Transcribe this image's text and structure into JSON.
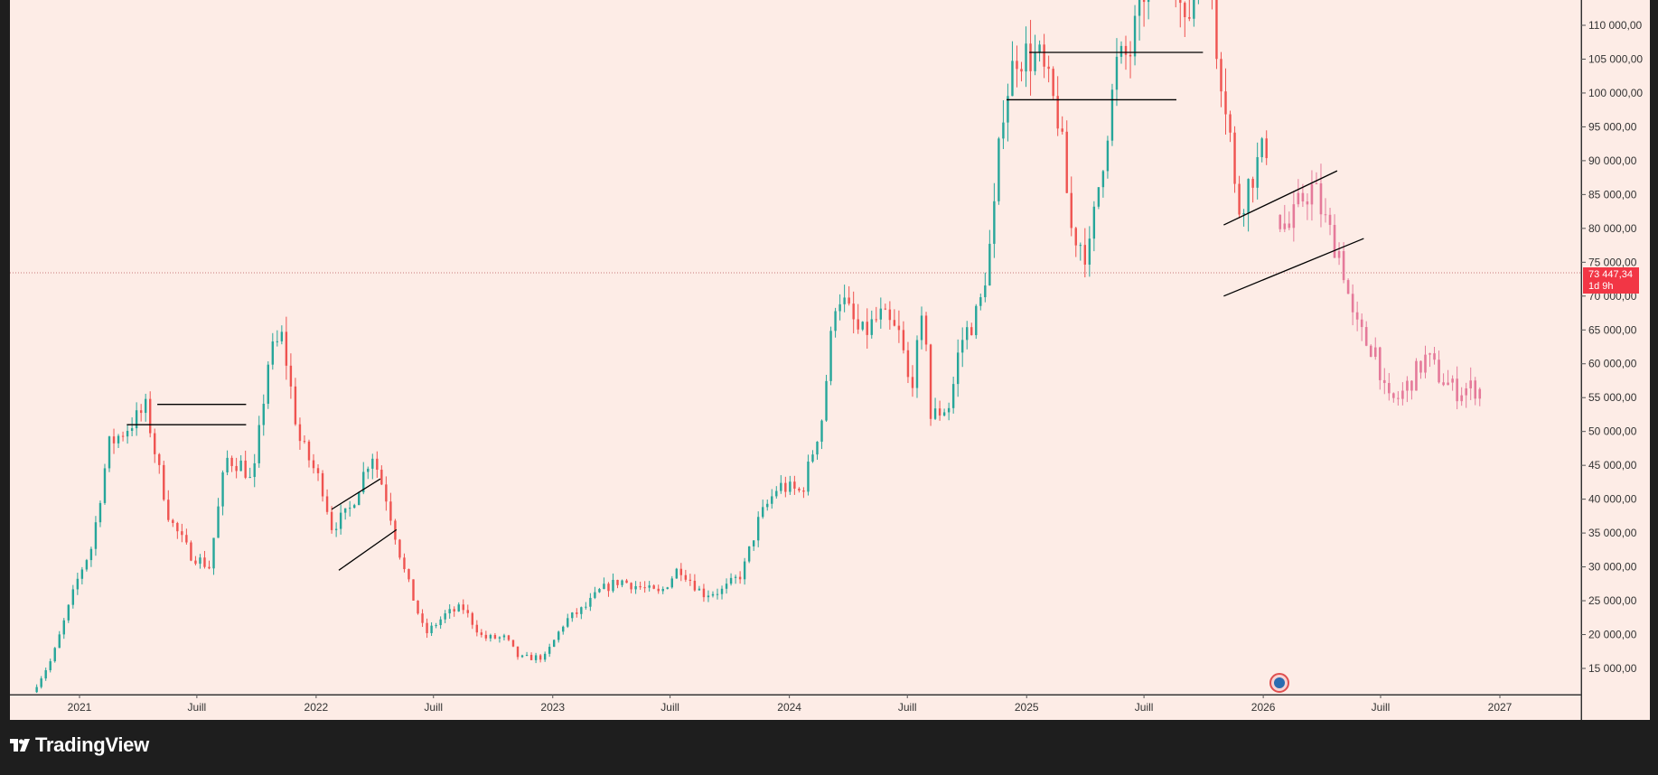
{
  "chart_data": {
    "type": "candlestick",
    "brand_colors": {
      "up": "#26a69a",
      "down": "#ef5350",
      "projection": "#e57a9a",
      "background": "#fdece6",
      "frame": "#1e1e1e"
    },
    "x_range": [
      "2020-10",
      "2027-04"
    ],
    "y_range": [
      10000,
      112000
    ],
    "x_ticks": [
      {
        "date": "2021-01",
        "label": "2021"
      },
      {
        "date": "2021-07",
        "label": "Juill"
      },
      {
        "date": "2022-01",
        "label": "2022"
      },
      {
        "date": "2022-07",
        "label": "Juill"
      },
      {
        "date": "2023-01",
        "label": "2023"
      },
      {
        "date": "2023-07",
        "label": "Juill"
      },
      {
        "date": "2024-01",
        "label": "2024"
      },
      {
        "date": "2024-07",
        "label": "Juill"
      },
      {
        "date": "2025-01",
        "label": "2025"
      },
      {
        "date": "2025-07",
        "label": "Juill"
      },
      {
        "date": "2026-01",
        "label": "2026"
      },
      {
        "date": "2026-07",
        "label": "Juill"
      },
      {
        "date": "2027-01",
        "label": "2027"
      }
    ],
    "y_ticks": [
      {
        "value": 15000,
        "label": "15 000,00"
      },
      {
        "value": 20000,
        "label": "20 000,00"
      },
      {
        "value": 25000,
        "label": "25 000,00"
      },
      {
        "value": 30000,
        "label": "30 000,00"
      },
      {
        "value": 35000,
        "label": "35 000,00"
      },
      {
        "value": 40000,
        "label": "40 000,00"
      },
      {
        "value": 45000,
        "label": "45 000,00"
      },
      {
        "value": 50000,
        "label": "50 000,00"
      },
      {
        "value": 55000,
        "label": "55 000,00"
      },
      {
        "value": 60000,
        "label": "60 000,00"
      },
      {
        "value": 65000,
        "label": "65 000,00"
      },
      {
        "value": 70000,
        "label": "70 000,00"
      },
      {
        "value": 75000,
        "label": "75 000,00"
      },
      {
        "value": 80000,
        "label": "80 000,00"
      },
      {
        "value": 85000,
        "label": "85 000,00"
      },
      {
        "value": 90000,
        "label": "90 000,00"
      },
      {
        "value": 95000,
        "label": "95 000,00"
      },
      {
        "value": 100000,
        "label": "100 000,00"
      },
      {
        "value": 105000,
        "label": "105 000,00"
      },
      {
        "value": 110000,
        "label": "110 000,00"
      }
    ],
    "current_price": {
      "value": 73447.34,
      "label": "73 447,34",
      "countdown": "1d 9h"
    },
    "price_path": [
      [
        "2020-10-20",
        11500
      ],
      [
        "2020-11-20",
        16500
      ],
      [
        "2021-01-01",
        29000
      ],
      [
        "2021-01-20",
        33000
      ],
      [
        "2021-02-15",
        48000
      ],
      [
        "2021-03-10",
        50000
      ],
      [
        "2021-04-14",
        53500
      ],
      [
        "2021-04-25",
        48000
      ],
      [
        "2021-05-20",
        37000
      ],
      [
        "2021-06-20",
        32000
      ],
      [
        "2021-07-20",
        30000
      ],
      [
        "2021-08-15",
        46000
      ],
      [
        "2021-09-10",
        45000
      ],
      [
        "2021-09-25",
        42000
      ],
      [
        "2021-10-20",
        61000
      ],
      [
        "2021-11-10",
        64000
      ],
      [
        "2021-12-05",
        49000
      ],
      [
        "2022-01-10",
        42000
      ],
      [
        "2022-01-25",
        36000
      ],
      [
        "2022-02-20",
        38000
      ],
      [
        "2022-03-28",
        47000
      ],
      [
        "2022-04-20",
        40000
      ],
      [
        "2022-05-15",
        30000
      ],
      [
        "2022-06-18",
        20000
      ],
      [
        "2022-07-20",
        23000
      ],
      [
        "2022-08-15",
        24000
      ],
      [
        "2022-09-15",
        19500
      ],
      [
        "2022-10-20",
        19500
      ],
      [
        "2022-11-10",
        16500
      ],
      [
        "2022-12-20",
        16700
      ],
      [
        "2023-01-20",
        22000
      ],
      [
        "2023-02-20",
        24000
      ],
      [
        "2023-03-15",
        26500
      ],
      [
        "2023-04-15",
        28000
      ],
      [
        "2023-05-15",
        27000
      ],
      [
        "2023-06-15",
        26000
      ],
      [
        "2023-07-15",
        30000
      ],
      [
        "2023-08-20",
        26000
      ],
      [
        "2023-09-20",
        26500
      ],
      [
        "2023-10-20",
        29000
      ],
      [
        "2023-11-15",
        37000
      ],
      [
        "2023-12-15",
        42000
      ],
      [
        "2024-01-20",
        41000
      ],
      [
        "2024-02-20",
        52000
      ],
      [
        "2024-03-14",
        71000
      ],
      [
        "2024-04-20",
        64000
      ],
      [
        "2024-05-20",
        67000
      ],
      [
        "2024-06-20",
        64000
      ],
      [
        "2024-07-05",
        56000
      ],
      [
        "2024-07-28",
        68000
      ],
      [
        "2024-08-05",
        52000
      ],
      [
        "2024-09-05",
        54000
      ],
      [
        "2024-09-20",
        63000
      ],
      [
        "2024-10-20",
        68000
      ],
      [
        "2024-11-10",
        80000
      ],
      [
        "2024-11-25",
        98000
      ],
      [
        "2024-12-17",
        106000
      ],
      [
        "2025-01-20",
        105000
      ],
      [
        "2025-02-20",
        96000
      ],
      [
        "2025-03-10",
        80000
      ],
      [
        "2025-04-07",
        76000
      ],
      [
        "2025-04-20",
        85000
      ],
      [
        "2025-05-20",
        104000
      ],
      [
        "2025-06-10",
        106000
      ],
      [
        "2025-07-14",
        121000
      ],
      [
        "2025-08-14",
        123000
      ],
      [
        "2025-09-01",
        108000
      ],
      [
        "2025-10-06",
        125000
      ],
      [
        "2025-10-20",
        108000
      ],
      [
        "2025-11-10",
        95000
      ],
      [
        "2025-11-21",
        82000
      ],
      [
        "2025-12-15",
        88000
      ],
      [
        "2026-01-10",
        93000
      ]
    ],
    "projection_path": [
      [
        "2026-01-20",
        82000
      ],
      [
        "2026-02-10",
        80000
      ],
      [
        "2026-03-05",
        85000
      ],
      [
        "2026-03-20",
        86000
      ],
      [
        "2026-04-10",
        80000
      ],
      [
        "2026-05-01",
        76000
      ],
      [
        "2026-05-20",
        66000
      ],
      [
        "2026-06-10",
        63000
      ],
      [
        "2026-06-25",
        62000
      ],
      [
        "2026-07-10",
        54000
      ],
      [
        "2026-07-30",
        55000
      ],
      [
        "2026-08-20",
        58000
      ],
      [
        "2026-09-10",
        61000
      ],
      [
        "2026-10-01",
        58000
      ],
      [
        "2026-10-25",
        56000
      ],
      [
        "2026-11-20",
        56500
      ],
      [
        "2026-12-05",
        56000
      ]
    ],
    "annotations": [
      {
        "type": "hline",
        "from": "2021-05-01",
        "to": "2021-09-15",
        "value": 54000
      },
      {
        "type": "hline",
        "from": "2021-03-15",
        "to": "2021-09-15",
        "value": 51000
      },
      {
        "type": "channel",
        "upper": [
          [
            "2022-01-25",
            38500
          ],
          [
            "2022-04-10",
            43000
          ]
        ],
        "lower": [
          [
            "2022-02-05",
            29500
          ],
          [
            "2022-05-05",
            35500
          ]
        ]
      },
      {
        "type": "hline",
        "from": "2025-01-05",
        "to": "2025-09-30",
        "value": 106000
      },
      {
        "type": "hline",
        "from": "2024-12-01",
        "to": "2025-08-20",
        "value": 99000
      },
      {
        "type": "channel",
        "upper": [
          [
            "2025-11-01",
            80500
          ],
          [
            "2026-04-25",
            88500
          ]
        ],
        "lower": [
          [
            "2025-11-01",
            70000
          ],
          [
            "2026-06-05",
            78500
          ]
        ]
      }
    ]
  },
  "footer": {
    "logo_text": "TradingView"
  }
}
